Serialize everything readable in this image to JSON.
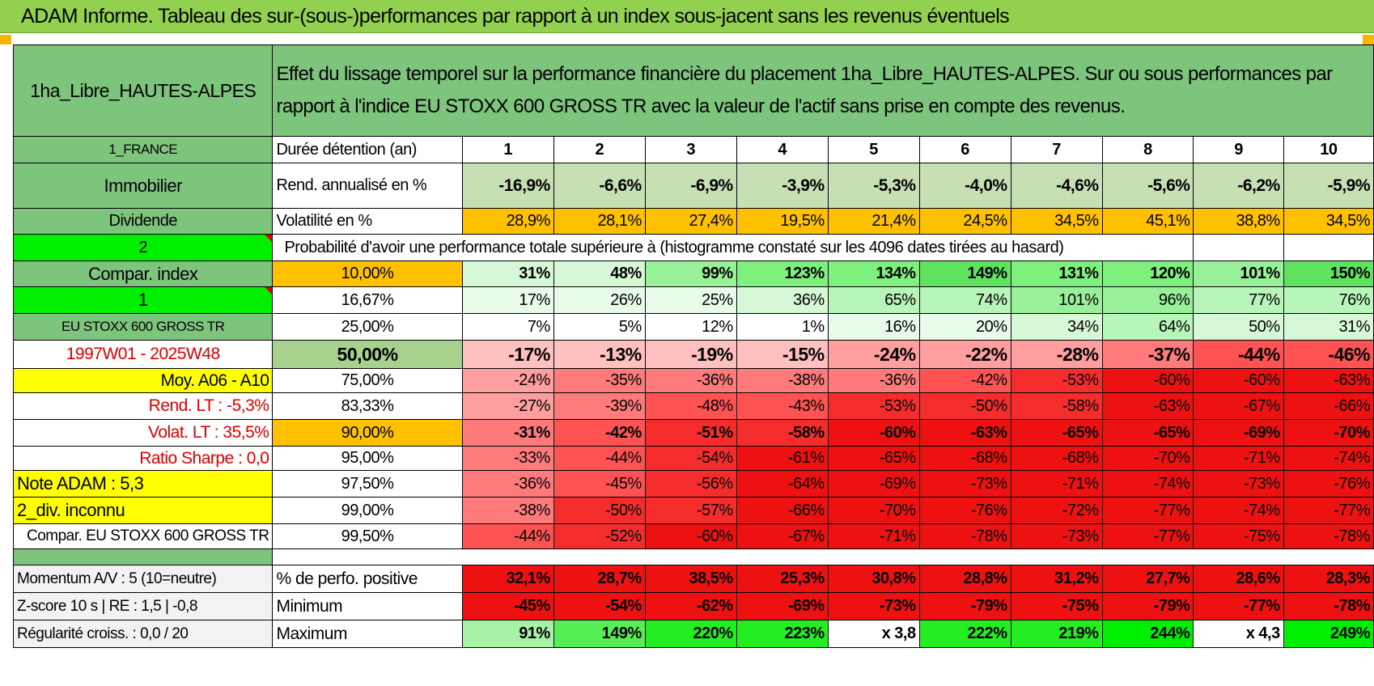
{
  "title": "ADAM Informe. Tableau des sur-(sous-)performances par rapport à un index sous-jacent sans les revenus éventuels",
  "header": {
    "fund": "1ha_Libre_HAUTES-ALPES",
    "description": "Effet du lissage temporel sur la performance financière du placement 1ha_Libre_HAUTES-ALPES. Sur ou sous performances par rapport à l'indice EU STOXX 600 GROSS TR avec la valeur de l'actif sans prise en compte des revenus."
  },
  "left": {
    "country": "1_FRANCE",
    "sector": "Immobilier",
    "type": "Dividende",
    "sel1": "2",
    "compar_label": "Compar. index",
    "sel2": "1",
    "index_name": "EU STOXX 600 GROSS TR",
    "period": "1997W01 - 2025W48",
    "moy": "Moy. A06 - A10",
    "rend_lt": "Rend. LT :    -5,3%",
    "volat_lt": "Volat. LT :    35,5%",
    "sharpe": "Ratio Sharpe :     0,0",
    "note": "Note ADAM : 5,3",
    "div": "2_div. inconnu",
    "compar_long": "Compar. EU STOXX 600 GROSS TR",
    "momentum": "Momentum A/V : 5 (10=neutre)",
    "zscore": "Z-score 10 s | RE : 1,5 | -0,8",
    "regularite": "Régularité croiss. : 0,0 / 20"
  },
  "rows_labels": {
    "duree": "Durée détention (an)",
    "rend": "Rend. annualisé en %",
    "vol": "Volatilité en %",
    "proba": "Probabilité d'avoir une performance totale supérieure à (histogramme constaté sur les 4096 dates tirées au hasard)",
    "pct_pos": "% de perfo. positive",
    "minimum": "Minimum",
    "maximum": "Maximum"
  },
  "years": [
    "1",
    "2",
    "3",
    "4",
    "5",
    "6",
    "7",
    "8",
    "9",
    "10"
  ],
  "rend": [
    "-16,9%",
    "-6,6%",
    "-6,9%",
    "-3,9%",
    "-5,3%",
    "-4,0%",
    "-4,6%",
    "-5,6%",
    "-6,2%",
    "-5,9%"
  ],
  "vol": [
    "28,9%",
    "28,1%",
    "27,4%",
    "19,5%",
    "21,4%",
    "24,5%",
    "34,5%",
    "45,1%",
    "38,8%",
    "34,5%"
  ],
  "thresholds": [
    "10,00%",
    "16,67%",
    "25,00%",
    "50,00%",
    "75,00%",
    "83,33%",
    "90,00%",
    "95,00%",
    "97,50%",
    "99,00%",
    "99,50%"
  ],
  "prob": [
    [
      "31%",
      "48%",
      "99%",
      "123%",
      "134%",
      "149%",
      "131%",
      "120%",
      "101%",
      "150%"
    ],
    [
      "17%",
      "26%",
      "25%",
      "36%",
      "65%",
      "74%",
      "101%",
      "96%",
      "77%",
      "76%"
    ],
    [
      "7%",
      "5%",
      "12%",
      "1%",
      "16%",
      "20%",
      "34%",
      "64%",
      "50%",
      "31%"
    ],
    [
      "-17%",
      "-13%",
      "-19%",
      "-15%",
      "-24%",
      "-22%",
      "-28%",
      "-37%",
      "-44%",
      "-46%"
    ],
    [
      "-24%",
      "-35%",
      "-36%",
      "-38%",
      "-36%",
      "-42%",
      "-53%",
      "-60%",
      "-60%",
      "-63%"
    ],
    [
      "-27%",
      "-39%",
      "-48%",
      "-43%",
      "-53%",
      "-50%",
      "-58%",
      "-63%",
      "-67%",
      "-66%"
    ],
    [
      "-31%",
      "-42%",
      "-51%",
      "-58%",
      "-60%",
      "-63%",
      "-65%",
      "-65%",
      "-69%",
      "-70%"
    ],
    [
      "-33%",
      "-44%",
      "-54%",
      "-61%",
      "-65%",
      "-68%",
      "-68%",
      "-70%",
      "-71%",
      "-74%"
    ],
    [
      "-36%",
      "-45%",
      "-56%",
      "-64%",
      "-69%",
      "-73%",
      "-71%",
      "-74%",
      "-73%",
      "-76%"
    ],
    [
      "-38%",
      "-50%",
      "-57%",
      "-66%",
      "-70%",
      "-76%",
      "-72%",
      "-77%",
      "-74%",
      "-77%"
    ],
    [
      "-44%",
      "-52%",
      "-60%",
      "-67%",
      "-71%",
      "-78%",
      "-73%",
      "-77%",
      "-75%",
      "-78%"
    ]
  ],
  "pct_pos": [
    "32,1%",
    "28,7%",
    "38,5%",
    "25,3%",
    "30,8%",
    "28,8%",
    "31,2%",
    "27,7%",
    "28,6%",
    "28,3%"
  ],
  "minimum": [
    "-45%",
    "-54%",
    "-62%",
    "-69%",
    "-73%",
    "-79%",
    "-75%",
    "-79%",
    "-77%",
    "-78%"
  ],
  "maximum": [
    "91%",
    "149%",
    "220%",
    "223%",
    "x 3,8",
    "222%",
    "219%",
    "244%",
    "x 4,3",
    "249%"
  ],
  "colors": {
    "title_bg": "#92d050",
    "label_green": "#7dc47d",
    "bright_green": "#00ee00",
    "yellow": "#ffff00",
    "orange": "#ffc000",
    "red_text": "#e00000"
  }
}
